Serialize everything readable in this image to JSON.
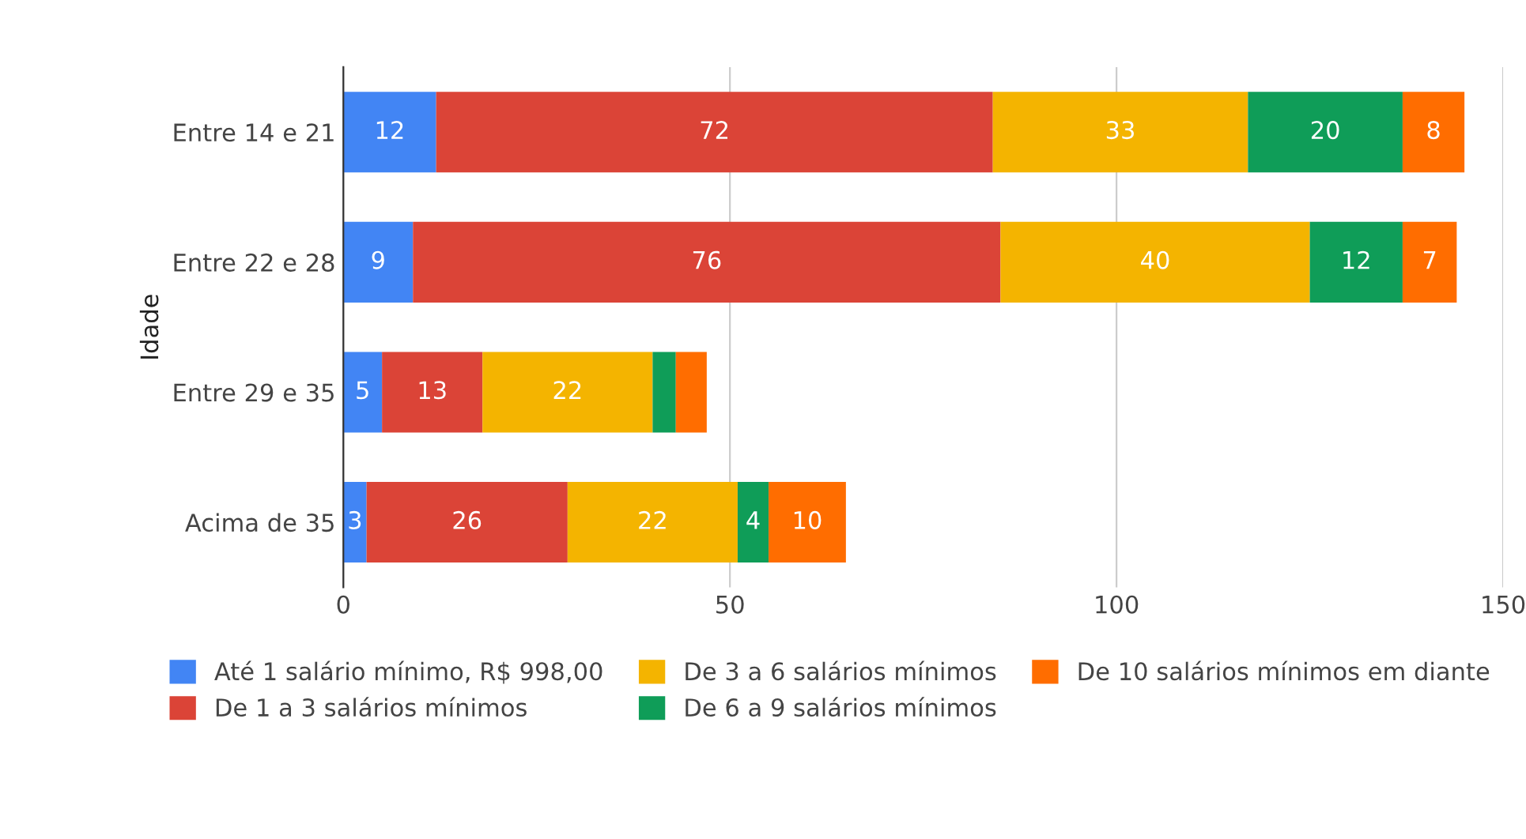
{
  "chart_data": {
    "type": "bar",
    "orientation": "horizontal",
    "stacked": true,
    "ylabel": "Idade",
    "categories": [
      "Entre 14 e 21",
      "Entre 22 e 28",
      "Entre 29 e 35",
      "Acima de 35"
    ],
    "series": [
      {
        "name": "Até 1 salário mínimo, R$ 998,00",
        "color": "#4285f4",
        "values": [
          12,
          9,
          5,
          3
        ],
        "value_labels": [
          "12",
          "9",
          "5",
          "3"
        ]
      },
      {
        "name": "De 1 a 3 salários mínimos",
        "color": "#db4437",
        "values": [
          72,
          76,
          13,
          26
        ],
        "value_labels": [
          "72",
          "76",
          "13",
          "26"
        ]
      },
      {
        "name": "De 3 a 6 salários mínimos",
        "color": "#f4b400",
        "values": [
          33,
          40,
          22,
          22
        ],
        "value_labels": [
          "33",
          "40",
          "22",
          "22"
        ]
      },
      {
        "name": "De 6 a 9 salários mínimos",
        "color": "#0f9d58",
        "values": [
          20,
          12,
          3,
          4
        ],
        "value_labels": [
          "20",
          "12",
          null,
          "4"
        ]
      },
      {
        "name": "De 10 salários mínimos em diante",
        "color": "#ff6d00",
        "values": [
          8,
          7,
          4,
          10
        ],
        "value_labels": [
          "8",
          "7",
          null,
          "10"
        ]
      }
    ],
    "xlim": [
      0,
      150
    ],
    "xticks": [
      0,
      50,
      100,
      150
    ],
    "grid": "x",
    "legend": "bottom"
  }
}
